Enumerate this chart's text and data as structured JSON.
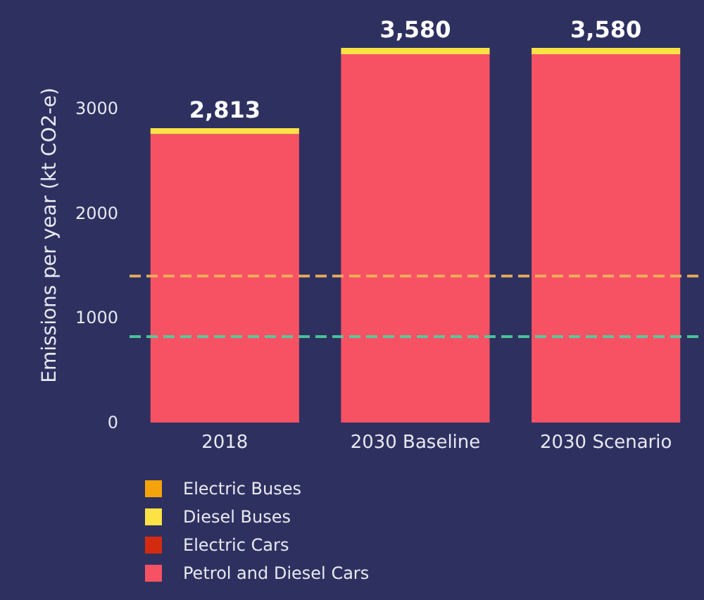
{
  "chart_data": {
    "type": "bar",
    "ylabel": "Emissions per year (kt CO2-e)",
    "categories": [
      "2018",
      "2030 Baseline",
      "2030 Scenario"
    ],
    "stacked": true,
    "series": [
      {
        "name": "Petrol and Diesel Cars",
        "color": "#f75264",
        "values": [
          2758,
          3520,
          3520
        ]
      },
      {
        "name": "Electric Cars",
        "color": "#d42b10",
        "values": [
          0,
          0,
          0
        ]
      },
      {
        "name": "Diesel Buses",
        "color": "#fde245",
        "values": [
          55,
          60,
          60
        ]
      },
      {
        "name": "Electric Buses",
        "color": "#f5a30c",
        "values": [
          0,
          0,
          0
        ]
      }
    ],
    "totals": [
      "2,813",
      "3,580",
      "3,580"
    ],
    "ylim": [
      0,
      3580
    ],
    "yticks": [
      0,
      1000,
      2000,
      3000
    ],
    "ref_lines": [
      {
        "axis": "y",
        "value": 1400,
        "color": "#f3b35a",
        "line_style": "dashed"
      },
      {
        "axis": "y",
        "value": 830,
        "color": "#4fd0a0",
        "line_style": "dashed"
      }
    ],
    "grid": false,
    "legend": "bottom left"
  }
}
